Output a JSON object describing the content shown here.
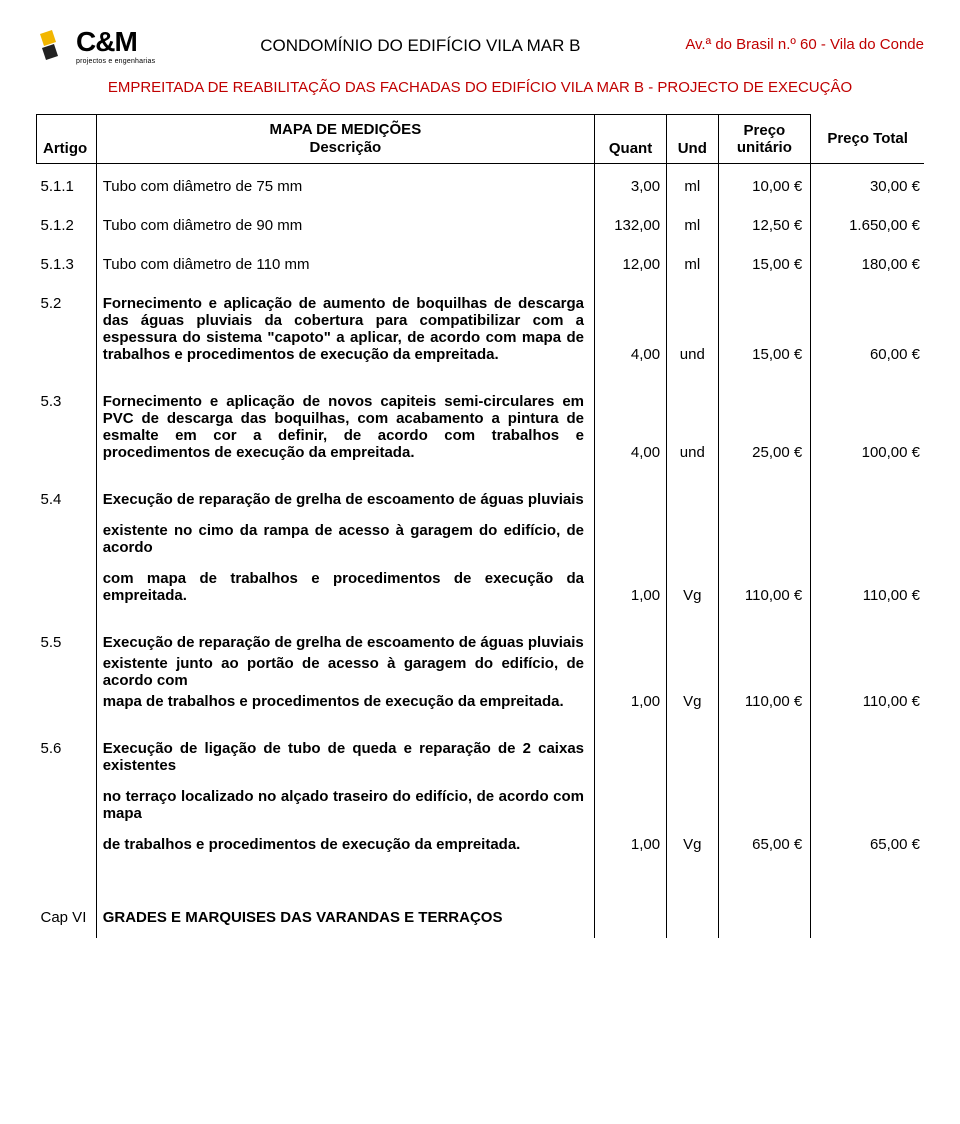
{
  "colors": {
    "accent_red": "#c00000",
    "logo_yellow": "#f2b600",
    "text": "#000000",
    "bg": "#ffffff",
    "border": "#000000"
  },
  "typography": {
    "body_family": "Arial",
    "body_size_pt": 11,
    "header_title_size_pt": 13,
    "logo_cm_size_pt": 21,
    "logo_sub_size_pt": 5
  },
  "header": {
    "logo_brand": "C&M",
    "logo_sub": "projectos e engenharias",
    "title": "CONDOMÍNIO DO EDIFÍCIO VILA MAR B",
    "address": "Av.ª do Brasil n.º 60 - Vila do Conde"
  },
  "subheader": "EMPREITADA DE REABILITAÇÃO DAS FACHADAS DO EDIFÍCIO VILA MAR B - PROJECTO DE EXECUÇÂO",
  "table": {
    "columns": {
      "artigo": "Artigo",
      "descricao_top": "MAPA DE MEDIÇÕES",
      "descricao": "Descrição",
      "quant": "Quant",
      "und": "Und",
      "preco_unitario": "Preço unitário",
      "preco_total": "Preço Total"
    },
    "rows": [
      {
        "art": "5.1.1",
        "desc": "Tubo com diâmetro de 75 mm",
        "quant": "3,00",
        "und": "ml",
        "pu": "10,00 €",
        "pt": "30,00 €"
      },
      {
        "art": "5.1.2",
        "desc": "Tubo com diâmetro de 90 mm",
        "quant": "132,00",
        "und": "ml",
        "pu": "12,50 €",
        "pt": "1.650,00 €"
      },
      {
        "art": "5.1.3",
        "desc": "Tubo com diâmetro de 110 mm",
        "quant": "12,00",
        "und": "ml",
        "pu": "15,00 €",
        "pt": "180,00 €"
      },
      {
        "art": "5.2",
        "desc": "Fornecimento e aplicação de aumento de boquilhas de descarga das águas pluviais da cobertura para compatibilizar com a espessura do sistema \"capoto\" a aplicar, de acordo com mapa de trabalhos e procedimentos de execução da empreitada.",
        "quant": "4,00",
        "und": "und",
        "pu": "15,00 €",
        "pt": "60,00 €",
        "bold": true
      },
      {
        "art": "5.3",
        "desc": "Fornecimento e aplicação de novos capiteis semi-circulares em PVC de descarga das boquilhas, com acabamento a pintura de esmalte em cor a definir, de acordo com trabalhos e procedimentos de execução da empreitada.",
        "quant": "4,00",
        "und": "und",
        "pu": "25,00 €",
        "pt": "100,00 €",
        "bold": true
      },
      {
        "art": "5.4",
        "desc_parts": [
          "Execução de reparação de grelha de escoamento de águas pluviais",
          "existente no cimo da rampa de acesso à garagem do edifício, de acordo",
          "com mapa de trabalhos e procedimentos de execução da empreitada."
        ],
        "quant": "1,00",
        "und": "Vg",
        "pu": "110,00 €",
        "pt": "110,00 €",
        "bold": true
      },
      {
        "art": "5.5",
        "desc_parts": [
          "Execução de reparação de grelha de escoamento de águas pluviais",
          "existente junto ao portão de acesso à garagem do edifício, de acordo com",
          "mapa de trabalhos e procedimentos de execução da empreitada."
        ],
        "quant": "1,00",
        "und": "Vg",
        "pu": "110,00 €",
        "pt": "110,00 €",
        "bold": true,
        "tight": true
      },
      {
        "art": "5.6",
        "desc_parts": [
          "Execução de ligação de tubo de queda e reparação de 2 caixas existentes",
          "no terraço localizado no alçado traseiro do edifício, de acordo com mapa",
          "de trabalhos e procedimentos de execução da empreitada."
        ],
        "quant": "1,00",
        "und": "Vg",
        "pu": "65,00 €",
        "pt": "65,00 €",
        "bold": true
      }
    ],
    "chapter": {
      "art": "Cap VI",
      "desc": "GRADES E MARQUISES DAS VARANDAS E TERRAÇOS"
    }
  }
}
